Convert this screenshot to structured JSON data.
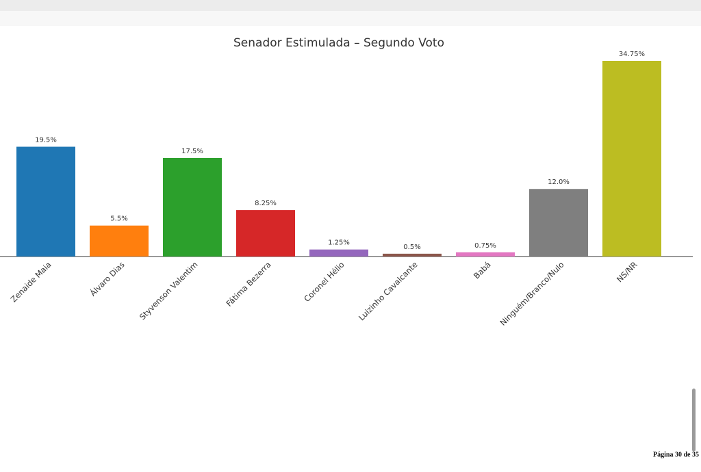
{
  "chart_data": {
    "type": "bar",
    "title": "Senador Estimulada – Segundo Voto",
    "categories": [
      "Zenaide Maia",
      "Álvaro Dias",
      "Styvenson Valentim",
      "Fátima Bezerra",
      "Coronel Hélio",
      "Luizinho Cavalcante",
      "Babá",
      "Ninguém/Branco/Nulo",
      "NS/NR"
    ],
    "values": [
      19.5,
      5.5,
      17.5,
      8.25,
      1.25,
      0.5,
      0.75,
      12.0,
      34.75
    ],
    "value_labels": [
      "19.5%",
      "5.5%",
      "17.5%",
      "8.25%",
      "1.25%",
      "0.5%",
      "0.75%",
      "12.0%",
      "34.75%"
    ],
    "colors": [
      "#1f77b4",
      "#ff7f0e",
      "#2ca02c",
      "#d62728",
      "#9467bd",
      "#8c564b",
      "#e377c2",
      "#7f7f7f",
      "#bcbd22"
    ]
  },
  "page_footer": "Página 30 de 35"
}
